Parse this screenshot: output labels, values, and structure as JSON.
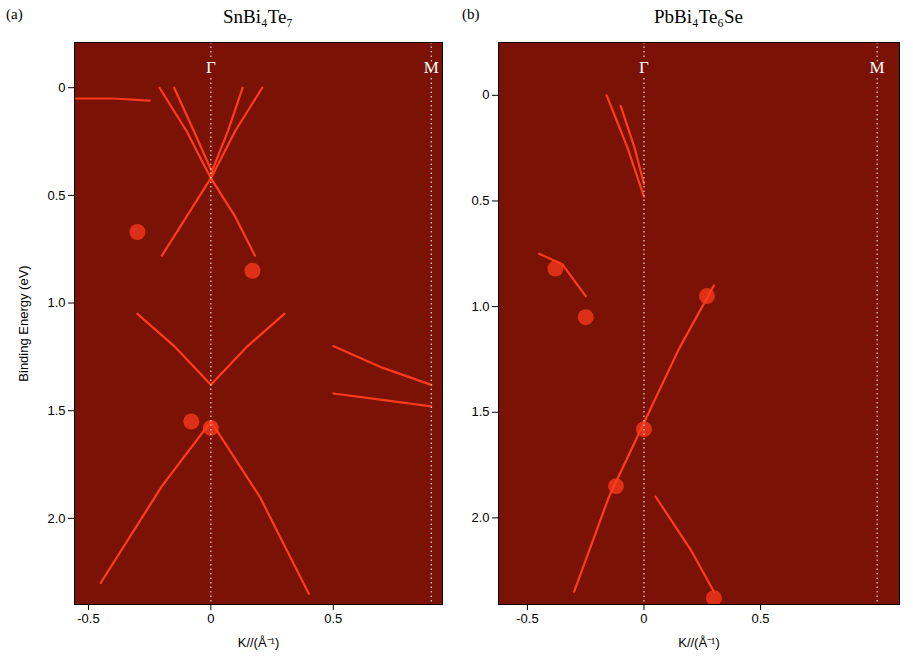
{
  "chart_data": [
    {
      "type": "line",
      "panel": "(a)",
      "title": "SnBi₄Te₇",
      "xlabel": "K//(Å⁻¹)",
      "ylabel": "Binding Energy (eV)",
      "xlim": [
        -0.557,
        0.946
      ],
      "ylim": [
        -0.21,
        2.4
      ],
      "xticks": [
        -0.5,
        0,
        0.5
      ],
      "yticks": [
        0,
        0.5,
        {
          "value": 1,
          "label": "1.0"
        },
        1.5,
        {
          "value": 2,
          "label": "2.0"
        }
      ],
      "color": "#ff3b1c",
      "symmetry_points": [
        {
          "label": "Γ",
          "k": 0
        },
        {
          "label": "M",
          "k": 0.9
        }
      ],
      "bands": [
        {
          "k": [
            -0.21,
            -0.1,
            0
          ],
          "E": [
            0,
            0.2,
            0.42
          ]
        },
        {
          "k": [
            -0.15,
            -0.07,
            0
          ],
          "E": [
            0,
            0.2,
            0.38
          ]
        },
        {
          "k": [
            0.13,
            0.07,
            0
          ],
          "E": [
            0,
            0.2,
            0.4
          ]
        },
        {
          "k": [
            0.21,
            0.1,
            0
          ],
          "E": [
            0,
            0.2,
            0.42
          ]
        },
        {
          "k": [
            0,
            0.1,
            0.18
          ],
          "E": [
            0.42,
            0.6,
            0.78
          ]
        },
        {
          "k": [
            0,
            -0.1,
            -0.2
          ],
          "E": [
            0.42,
            0.6,
            0.78
          ]
        },
        {
          "k": [
            -0.55,
            -0.4,
            -0.25
          ],
          "E": [
            0.05,
            0.05,
            0.06
          ]
        },
        {
          "k": [
            -0.3,
            -0.15,
            0
          ],
          "E": [
            1.05,
            1.2,
            1.38
          ]
        },
        {
          "k": [
            0.3,
            0.15,
            0
          ],
          "E": [
            1.05,
            1.2,
            1.38
          ]
        },
        {
          "k": [
            0,
            -0.2,
            -0.45
          ],
          "E": [
            1.55,
            1.85,
            2.3
          ]
        },
        {
          "k": [
            0,
            0.2,
            0.4
          ],
          "E": [
            1.55,
            1.9,
            2.35
          ]
        },
        {
          "k": [
            0.5,
            0.7,
            0.9
          ],
          "E": [
            1.2,
            1.3,
            1.38
          ]
        },
        {
          "k": [
            0.5,
            0.7,
            0.9
          ],
          "E": [
            1.42,
            1.45,
            1.48
          ]
        }
      ],
      "spots": {
        "k": [
          -0.3,
          0.17,
          0,
          -0.08
        ],
        "E": [
          0.67,
          0.85,
          1.58,
          1.55
        ]
      }
    },
    {
      "type": "line",
      "panel": "(b)",
      "title": "PbBi₄Te₆Se",
      "xlabel": "K//(Å⁻¹)",
      "xlim": [
        -0.624,
        1.096
      ],
      "ylim": [
        -0.25,
        2.41
      ],
      "xticks": [
        -0.5,
        0,
        0.5
      ],
      "yticks": [
        0,
        0.5,
        {
          "value": 1,
          "label": "1.0"
        },
        1.5,
        {
          "value": 2,
          "label": "2.0"
        }
      ],
      "color": "#ff3b1c",
      "symmetry_points": [
        {
          "label": "Γ",
          "k": 0
        },
        {
          "label": "M",
          "k": 1.0
        }
      ],
      "bands": [
        {
          "k": [
            -0.16,
            -0.07,
            0
          ],
          "E": [
            0,
            0.25,
            0.48
          ]
        },
        {
          "k": [
            -0.1,
            -0.04,
            0
          ],
          "E": [
            0.05,
            0.25,
            0.42
          ]
        },
        {
          "k": [
            -0.45,
            -0.35,
            -0.25
          ],
          "E": [
            0.75,
            0.8,
            0.95
          ]
        },
        {
          "k": [
            0.3,
            0.15,
            0
          ],
          "E": [
            0.9,
            1.2,
            1.55
          ]
        },
        {
          "k": [
            0,
            -0.15,
            -0.3
          ],
          "E": [
            1.55,
            1.9,
            2.35
          ]
        },
        {
          "k": [
            0.05,
            0.2,
            0.3
          ],
          "E": [
            1.9,
            2.15,
            2.35
          ]
        }
      ],
      "spots": {
        "k": [
          -0.38,
          0,
          0.3,
          -0.25,
          0.27,
          -0.12
        ],
        "E": [
          0.82,
          1.58,
          2.38,
          1.05,
          0.95,
          1.85
        ]
      }
    }
  ]
}
